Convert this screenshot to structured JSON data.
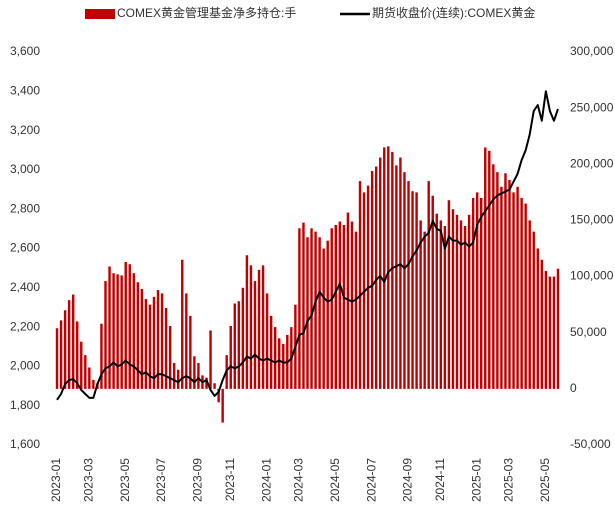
{
  "chart_data": {
    "type": "bar-line",
    "categories": [
      "2023-01",
      null,
      null,
      null,
      null,
      null,
      null,
      null,
      "2023-03",
      null,
      null,
      null,
      null,
      null,
      null,
      null,
      null,
      "2023-05",
      null,
      null,
      null,
      null,
      null,
      null,
      null,
      null,
      "2023-07",
      null,
      null,
      null,
      null,
      null,
      null,
      null,
      null,
      "2023-09",
      null,
      null,
      null,
      null,
      null,
      null,
      null,
      "2023-11",
      null,
      null,
      null,
      null,
      null,
      null,
      null,
      null,
      "2024-01",
      null,
      null,
      null,
      null,
      null,
      null,
      null,
      "2024-03",
      null,
      null,
      null,
      null,
      null,
      null,
      null,
      null,
      "2024-05",
      null,
      null,
      null,
      null,
      null,
      null,
      null,
      null,
      "2024-07",
      null,
      null,
      null,
      null,
      null,
      null,
      null,
      null,
      "2024-09",
      null,
      null,
      null,
      null,
      null,
      null,
      null,
      "2024-11",
      null,
      null,
      null,
      null,
      null,
      null,
      null,
      null,
      "2025-01",
      null,
      null,
      null,
      null,
      null,
      null,
      null,
      "2025-03",
      null,
      null,
      null,
      null,
      null,
      null,
      null,
      null,
      "2025-05",
      null,
      null,
      null
    ],
    "series": [
      {
        "name": "COMEX黄金管理基金净多持仓:手",
        "color": "#c00000",
        "axis": "y2",
        "values": [
          54000,
          61000,
          70000,
          79000,
          84000,
          60000,
          42000,
          30000,
          19000,
          8000,
          5000,
          58000,
          96000,
          109000,
          103000,
          102000,
          101000,
          113000,
          111000,
          103000,
          95000,
          89000,
          80000,
          75000,
          82000,
          88000,
          85000,
          72000,
          56000,
          23000,
          17000,
          115000,
          85000,
          65000,
          29000,
          23000,
          12000,
          10000,
          52000,
          5000,
          -12000,
          -30000,
          30000,
          56000,
          76000,
          78000,
          90000,
          119000,
          110000,
          96000,
          106000,
          110000,
          85000,
          65000,
          55000,
          45000,
          40000,
          48000,
          55000,
          75000,
          143000,
          148000,
          135000,
          143000,
          140000,
          135000,
          125000,
          132000,
          143000,
          146000,
          149000,
          146000,
          157000,
          149000,
          140000,
          185000,
          175000,
          181000,
          194000,
          198000,
          206000,
          215000,
          216000,
          211000,
          199000,
          206000,
          193000,
          185000,
          176000,
          175000,
          150000,
          140000,
          185000,
          172000,
          156000,
          150000,
          145000,
          168000,
          160000,
          155000,
          150000,
          145000,
          155000,
          170000,
          175000,
          170000,
          215000,
          212000,
          200000,
          193000,
          180000,
          192000,
          186000,
          175000,
          180000,
          170000,
          165000,
          150000,
          140000,
          125000,
          115000,
          105000,
          100000,
          100000,
          107000
        ]
      },
      {
        "name": "期货收盘价(连续):COMEX黄金",
        "color": "#000000",
        "axis": "y",
        "values": [
          1830,
          1860,
          1910,
          1930,
          1935,
          1915,
          1880,
          1860,
          1840,
          1840,
          1910,
          1960,
          1990,
          2000,
          2020,
          2000,
          2010,
          2030,
          2010,
          2000,
          1980,
          1960,
          1970,
          1950,
          1940,
          1960,
          1960,
          1950,
          1940,
          1930,
          1920,
          1940,
          1950,
          1940,
          1920,
          1940,
          1920,
          1930,
          1880,
          1850,
          1870,
          1930,
          1980,
          2000,
          1990,
          2000,
          2020,
          2050,
          2040,
          2060,
          2040,
          2030,
          2040,
          2030,
          2020,
          2030,
          2020,
          2020,
          2040,
          2100,
          2160,
          2170,
          2230,
          2260,
          2330,
          2380,
          2350,
          2330,
          2340,
          2380,
          2420,
          2350,
          2340,
          2330,
          2340,
          2360,
          2380,
          2400,
          2410,
          2440,
          2460,
          2430,
          2480,
          2500,
          2510,
          2520,
          2500,
          2520,
          2560,
          2590,
          2630,
          2660,
          2680,
          2740,
          2700,
          2690,
          2600,
          2660,
          2640,
          2640,
          2620,
          2630,
          2610,
          2630,
          2720,
          2760,
          2790,
          2820,
          2850,
          2870,
          2880,
          2890,
          2900,
          2940,
          2980,
          3050,
          3100,
          3180,
          3300,
          3330,
          3250,
          3400,
          3300,
          3250,
          3310
        ]
      }
    ],
    "ylim": [
      1600,
      3600
    ],
    "yticks": [
      {
        "value": 1600,
        "label": "1,600"
      },
      {
        "value": 1800,
        "label": "1,800"
      },
      {
        "value": 2000,
        "label": "2,000"
      },
      {
        "value": 2200,
        "label": "2,200"
      },
      {
        "value": 2400,
        "label": "2,400"
      },
      {
        "value": 2600,
        "label": "2,600"
      },
      {
        "value": 2800,
        "label": "2,800"
      },
      {
        "value": 3000,
        "label": "3,000"
      },
      {
        "value": 3200,
        "label": "3,200"
      },
      {
        "value": 3400,
        "label": "3,400"
      },
      {
        "value": 3600,
        "label": "3,600"
      }
    ],
    "y2lim": [
      -50000,
      300000
    ],
    "y2ticks": [
      {
        "value": -50000,
        "label": "-50,000"
      },
      0,
      {
        "value": 50000,
        "label": "50,000"
      },
      {
        "value": 100000,
        "label": "100,000"
      },
      {
        "value": 150000,
        "label": "150,000"
      },
      {
        "value": 200000,
        "label": "200,000"
      },
      {
        "value": 250000,
        "label": "250,000"
      },
      {
        "value": 300000,
        "label": "300,000"
      }
    ],
    "legend": "top",
    "grid": false
  }
}
